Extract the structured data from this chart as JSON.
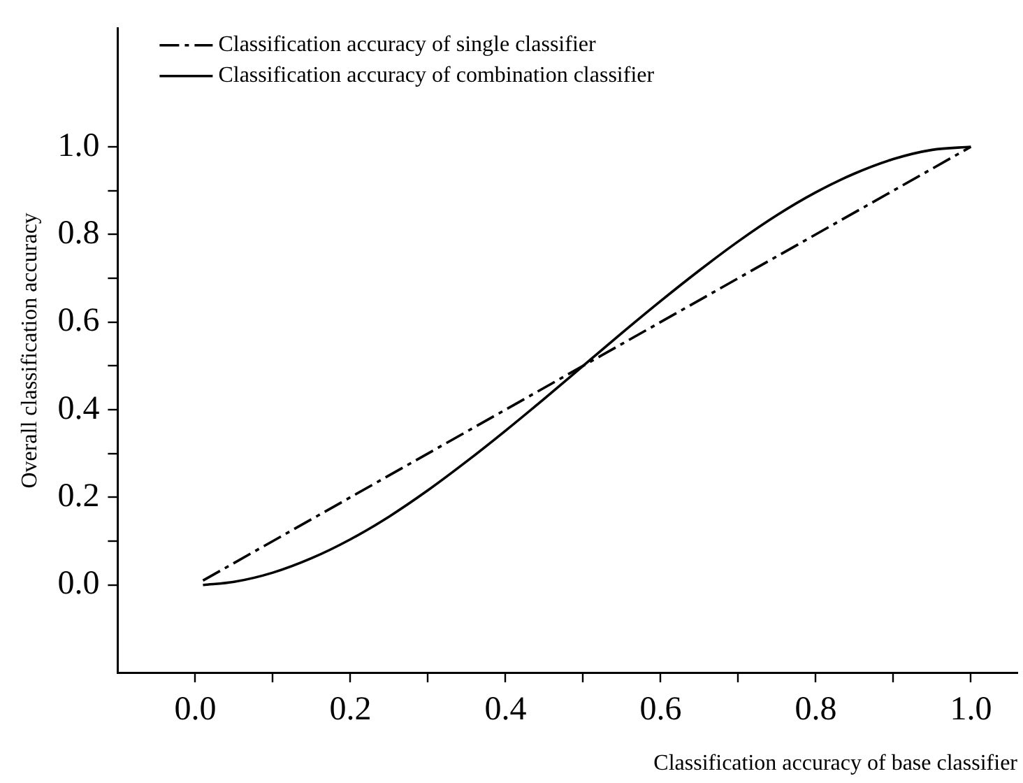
{
  "chart_data": {
    "type": "line",
    "xlabel": "Classification accuracy of base classifier",
    "ylabel": "Overall classification accuracy",
    "xlim": [
      -0.1,
      1.06
    ],
    "ylim": [
      -0.2,
      1.27
    ],
    "xticks": [
      {
        "value": 0,
        "label": "0.0"
      },
      {
        "value": 0.1,
        "label": null
      },
      {
        "value": 0.2,
        "label": "0.2"
      },
      {
        "value": 0.3,
        "label": null
      },
      {
        "value": 0.4,
        "label": "0.4"
      },
      {
        "value": 0.5,
        "label": null
      },
      {
        "value": 0.6,
        "label": "0.6"
      },
      {
        "value": 0.7,
        "label": null
      },
      {
        "value": 0.8,
        "label": "0.8"
      },
      {
        "value": 0.9,
        "label": null
      },
      {
        "value": 1,
        "label": "1.0"
      }
    ],
    "yticks": [
      {
        "value": 0,
        "label": "0.0"
      },
      {
        "value": 0.1,
        "label": null
      },
      {
        "value": 0.2,
        "label": "0.2"
      },
      {
        "value": 0.3,
        "label": null
      },
      {
        "value": 0.4,
        "label": "0.4"
      },
      {
        "value": 0.5,
        "label": null
      },
      {
        "value": 0.6,
        "label": "0.6"
      },
      {
        "value": 0.7,
        "label": null
      },
      {
        "value": 0.8,
        "label": "0.8"
      },
      {
        "value": 0.9,
        "label": null
      },
      {
        "value": 1,
        "label": "1.0"
      }
    ],
    "grid": false,
    "legend": "top left",
    "marker": "none",
    "series": [
      {
        "name": "Classification accuracy of single classifier",
        "color": "#000000",
        "line_style": "dashed",
        "x": [
          0.01,
          1.0
        ],
        "values": [
          0.01,
          1.0
        ]
      },
      {
        "name": "Classification accuracy of combination classifier",
        "color": "#000000",
        "line_style": "solid",
        "x": [
          0.01,
          0.05,
          0.1,
          0.15,
          0.2,
          0.25,
          0.3,
          0.35,
          0.4,
          0.45,
          0.5,
          0.55,
          0.6,
          0.65,
          0.7,
          0.75,
          0.8,
          0.85,
          0.9,
          0.95,
          1.0
        ],
        "values": [
          0.0,
          0.007,
          0.028,
          0.061,
          0.104,
          0.156,
          0.216,
          0.282,
          0.352,
          0.425,
          0.5,
          0.575,
          0.648,
          0.718,
          0.784,
          0.844,
          0.896,
          0.939,
          0.972,
          0.993,
          1.0
        ]
      }
    ]
  }
}
